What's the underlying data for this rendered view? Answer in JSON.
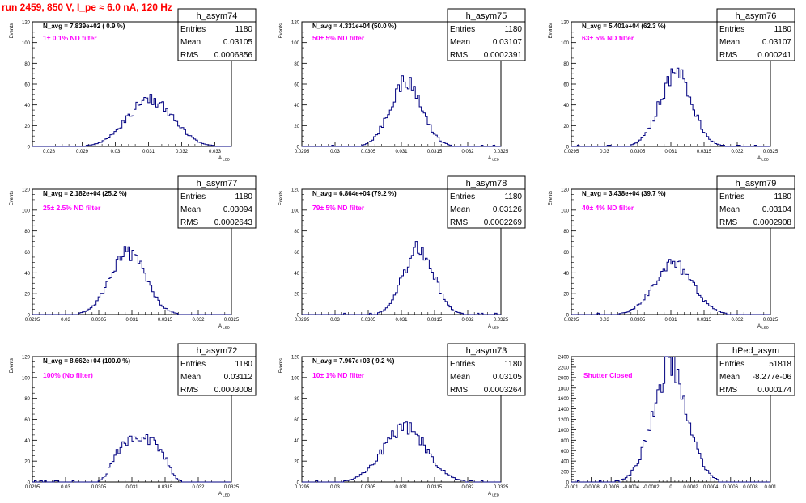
{
  "canvas_title": "run 2459,   850 V, I_pe ≈ 6.0 nA, 120 Hz",
  "colors": {
    "histogram": "#000080",
    "annotation": "#ff00ff",
    "run_title": "#ff0000",
    "axis": "#000000"
  },
  "chart_data": [
    {
      "type": "histogram",
      "name": "h_asym74",
      "stats": {
        "entries_label": "Entries",
        "entries": "1180",
        "mean_label": "Mean",
        "mean": "0.03105",
        "rms_label": "RMS",
        "rms": "0.0006856"
      },
      "avg_text": "N_avg = 7.839e+02 ( 0.9 %)",
      "filter_text": "1± 0.1% ND filter",
      "xlabel": "A_LED",
      "ylabel": "Events",
      "xlim": [
        0.0275,
        0.0335
      ],
      "ylim": [
        0,
        120
      ],
      "xticks": [
        0.028,
        0.029,
        0.03,
        0.031,
        0.032,
        0.033
      ],
      "xtick_labels": [
        "0.028",
        "0.029",
        "0.03",
        "0.031",
        "0.032",
        "0.033"
      ],
      "yticks": [
        0,
        20,
        40,
        60,
        80,
        100,
        120
      ],
      "ytick_labels": [
        "0",
        "20",
        "40",
        "60",
        "80",
        "100",
        "120"
      ],
      "nbins": 100,
      "peak": 45,
      "mean_value": 0.03105,
      "rms_value": 0.0006856
    },
    {
      "type": "histogram",
      "name": "h_asym75",
      "stats": {
        "entries_label": "Entries",
        "entries": "1180",
        "mean_label": "Mean",
        "mean": "0.03107",
        "rms_label": "RMS",
        "rms": "0.0002391"
      },
      "avg_text": "N_avg = 4.331e+04 (50.0 %)",
      "filter_text": "50± 5% ND filter",
      "xlabel": "A_LED",
      "ylabel": "Events",
      "xlim": [
        0.0295,
        0.0325
      ],
      "ylim": [
        0,
        120
      ],
      "xticks": [
        0.0295,
        0.03,
        0.0305,
        0.031,
        0.0315,
        0.032,
        0.0325
      ],
      "xtick_labels": [
        "0.0295",
        "0.03",
        "0.0305",
        "0.031",
        "0.0315",
        "0.032",
        "0.0325"
      ],
      "yticks": [
        0,
        20,
        40,
        60,
        80,
        100,
        120
      ],
      "ytick_labels": [
        "0",
        "20",
        "40",
        "60",
        "80",
        "100",
        "120"
      ],
      "nbins": 100,
      "peak": 62,
      "mean_value": 0.03107,
      "rms_value": 0.0002391
    },
    {
      "type": "histogram",
      "name": "h_asym76",
      "stats": {
        "entries_label": "Entries",
        "entries": "1180",
        "mean_label": "Mean",
        "mean": "0.03107",
        "rms_label": "RMS",
        "rms": "0.000241"
      },
      "avg_text": "N_avg = 5.401e+04 (62.3 %)",
      "filter_text": "63± 5% ND filter",
      "xlabel": "A_LED",
      "ylabel": "Events",
      "xlim": [
        0.0295,
        0.0325
      ],
      "ylim": [
        0,
        120
      ],
      "xticks": [
        0.0295,
        0.03,
        0.0305,
        0.031,
        0.0315,
        0.032,
        0.0325
      ],
      "xtick_labels": [
        "0.0295",
        "0.03",
        "0.0305",
        "0.031",
        "0.0315",
        "0.032",
        "0.0325"
      ],
      "yticks": [
        0,
        20,
        40,
        60,
        80,
        100,
        120
      ],
      "ytick_labels": [
        "0",
        "20",
        "40",
        "60",
        "80",
        "100",
        "120"
      ],
      "nbins": 100,
      "peak": 70,
      "mean_value": 0.03107,
      "rms_value": 0.000241
    },
    {
      "type": "histogram",
      "name": "h_asym77",
      "stats": {
        "entries_label": "Entries",
        "entries": "1180",
        "mean_label": "Mean",
        "mean": "0.03094",
        "rms_label": "RMS",
        "rms": "0.0002643"
      },
      "avg_text": "N_avg = 2.182e+04 (25.2 %)",
      "filter_text": "25± 2.5% ND filter",
      "xlabel": "A_LED",
      "ylabel": "Events",
      "xlim": [
        0.0295,
        0.0325
      ],
      "ylim": [
        0,
        120
      ],
      "xticks": [
        0.0295,
        0.03,
        0.0305,
        0.031,
        0.0315,
        0.032,
        0.0325
      ],
      "xtick_labels": [
        "0.0295",
        "0.03",
        "0.0305",
        "0.031",
        "0.0315",
        "0.032",
        "0.0325"
      ],
      "yticks": [
        0,
        20,
        40,
        60,
        80,
        100,
        120
      ],
      "ytick_labels": [
        "0",
        "20",
        "40",
        "60",
        "80",
        "100",
        "120"
      ],
      "nbins": 100,
      "peak": 60,
      "mean_value": 0.03094,
      "rms_value": 0.0002643
    },
    {
      "type": "histogram",
      "name": "h_asym78",
      "stats": {
        "entries_label": "Entries",
        "entries": "1180",
        "mean_label": "Mean",
        "mean": "0.03126",
        "rms_label": "RMS",
        "rms": "0.0002269"
      },
      "avg_text": "N_avg = 6.864e+04 (79.2 %)",
      "filter_text": "79± 5% ND filter",
      "xlabel": "A_LED",
      "ylabel": "Events",
      "xlim": [
        0.0295,
        0.0325
      ],
      "ylim": [
        0,
        120
      ],
      "xticks": [
        0.0295,
        0.03,
        0.0305,
        0.031,
        0.0315,
        0.032,
        0.0325
      ],
      "xtick_labels": [
        "0.0295",
        "0.03",
        "0.0305",
        "0.031",
        "0.0315",
        "0.032",
        "0.0325"
      ],
      "yticks": [
        0,
        20,
        40,
        60,
        80,
        100,
        120
      ],
      "ytick_labels": [
        "0",
        "20",
        "40",
        "60",
        "80",
        "100",
        "120"
      ],
      "nbins": 100,
      "peak": 64,
      "mean_value": 0.03126,
      "rms_value": 0.0002269
    },
    {
      "type": "histogram",
      "name": "h_asym79",
      "stats": {
        "entries_label": "Entries",
        "entries": "1180",
        "mean_label": "Mean",
        "mean": "0.03104",
        "rms_label": "RMS",
        "rms": "0.0002908"
      },
      "avg_text": "N_avg = 3.438e+04 (39.7 %)",
      "filter_text": "40± 4% ND filter",
      "xlabel": "A_LED",
      "ylabel": "Events",
      "xlim": [
        0.0295,
        0.0325
      ],
      "ylim": [
        0,
        120
      ],
      "xticks": [
        0.0295,
        0.03,
        0.0305,
        0.031,
        0.0315,
        0.032,
        0.0325
      ],
      "xtick_labels": [
        "0.0295",
        "0.03",
        "0.0305",
        "0.031",
        "0.0315",
        "0.032",
        "0.0325"
      ],
      "yticks": [
        0,
        20,
        40,
        60,
        80,
        100,
        120
      ],
      "ytick_labels": [
        "0",
        "20",
        "40",
        "60",
        "80",
        "100",
        "120"
      ],
      "nbins": 100,
      "peak": 48,
      "mean_value": 0.03104,
      "rms_value": 0.0002908
    },
    {
      "type": "histogram",
      "name": "h_asym72",
      "stats": {
        "entries_label": "Entries",
        "entries": "1180",
        "mean_label": "Mean",
        "mean": "0.03112",
        "rms_label": "RMS",
        "rms": "0.0003008"
      },
      "avg_text": "N_avg = 8.662e+04 (100.0 %)",
      "filter_text": "100% (No filter)",
      "xlabel": "A_LED",
      "ylabel": "Events",
      "xlim": [
        0.0295,
        0.0325
      ],
      "ylim": [
        0,
        120
      ],
      "xticks": [
        0.0295,
        0.03,
        0.0305,
        0.031,
        0.0315,
        0.032,
        0.0325
      ],
      "xtick_labels": [
        "0.0295",
        "0.03",
        "0.0305",
        "0.031",
        "0.0315",
        "0.032",
        "0.0325"
      ],
      "yticks": [
        0,
        20,
        40,
        60,
        80,
        100,
        120
      ],
      "ytick_labels": [
        "0",
        "20",
        "40",
        "60",
        "80",
        "100",
        "120"
      ],
      "nbins": 100,
      "peak": 40,
      "mean_value": 0.03112,
      "rms_value": 0.0003008
    },
    {
      "type": "histogram",
      "name": "h_asym73",
      "stats": {
        "entries_label": "Entries",
        "entries": "1180",
        "mean_label": "Mean",
        "mean": "0.03105",
        "rms_label": "RMS",
        "rms": "0.0003264"
      },
      "avg_text": "N_avg = 7.967e+03 ( 9.2 %)",
      "filter_text": "10± 1% ND filter",
      "xlabel": "A_LED",
      "ylabel": "Events",
      "xlim": [
        0.0295,
        0.0325
      ],
      "ylim": [
        0,
        120
      ],
      "xticks": [
        0.0295,
        0.03,
        0.0305,
        0.031,
        0.0315,
        0.032,
        0.0325
      ],
      "xtick_labels": [
        "0.0295",
        "0.03",
        "0.0305",
        "0.031",
        "0.0315",
        "0.032",
        "0.0325"
      ],
      "yticks": [
        0,
        20,
        40,
        60,
        80,
        100,
        120
      ],
      "ytick_labels": [
        "0",
        "20",
        "40",
        "60",
        "80",
        "100",
        "120"
      ],
      "nbins": 100,
      "peak": 52,
      "mean_value": 0.03105,
      "rms_value": 0.0003264
    },
    {
      "type": "histogram",
      "name": "hPed_asym",
      "stats": {
        "entries_label": "Entries",
        "entries": "51818",
        "mean_label": "Mean",
        "mean": "-8.277e-06",
        "rms_label": "RMS",
        "rms": "0.000174"
      },
      "avg_text": "",
      "filter_text": "Shutter Closed",
      "xlabel": "",
      "ylabel": "",
      "xlim": [
        -0.001,
        0.001
      ],
      "ylim": [
        0,
        2400
      ],
      "xticks": [
        -0.001,
        -0.0008,
        -0.0006,
        -0.0004,
        -0.0002,
        0,
        0.0002,
        0.0004,
        0.0006,
        0.0008,
        0.001
      ],
      "xtick_labels": [
        "-0.001",
        "-0.0008",
        "-0.0006",
        "-0.0004",
        "-0.0002",
        "0",
        "0.0002",
        "0.0004",
        "0.0006",
        "0.0008",
        "0.001"
      ],
      "yticks": [
        0,
        200,
        400,
        600,
        800,
        1000,
        1200,
        1400,
        1600,
        1800,
        2000,
        2200,
        2400
      ],
      "ytick_labels": [
        "0",
        "200",
        "400",
        "600",
        "800",
        "1000",
        "1200",
        "1400",
        "1600",
        "1800",
        "2000",
        "2200",
        "2400"
      ],
      "nbins": 100,
      "peak": 2220,
      "mean_value": -8.277e-06,
      "rms_value": 0.000174
    }
  ]
}
